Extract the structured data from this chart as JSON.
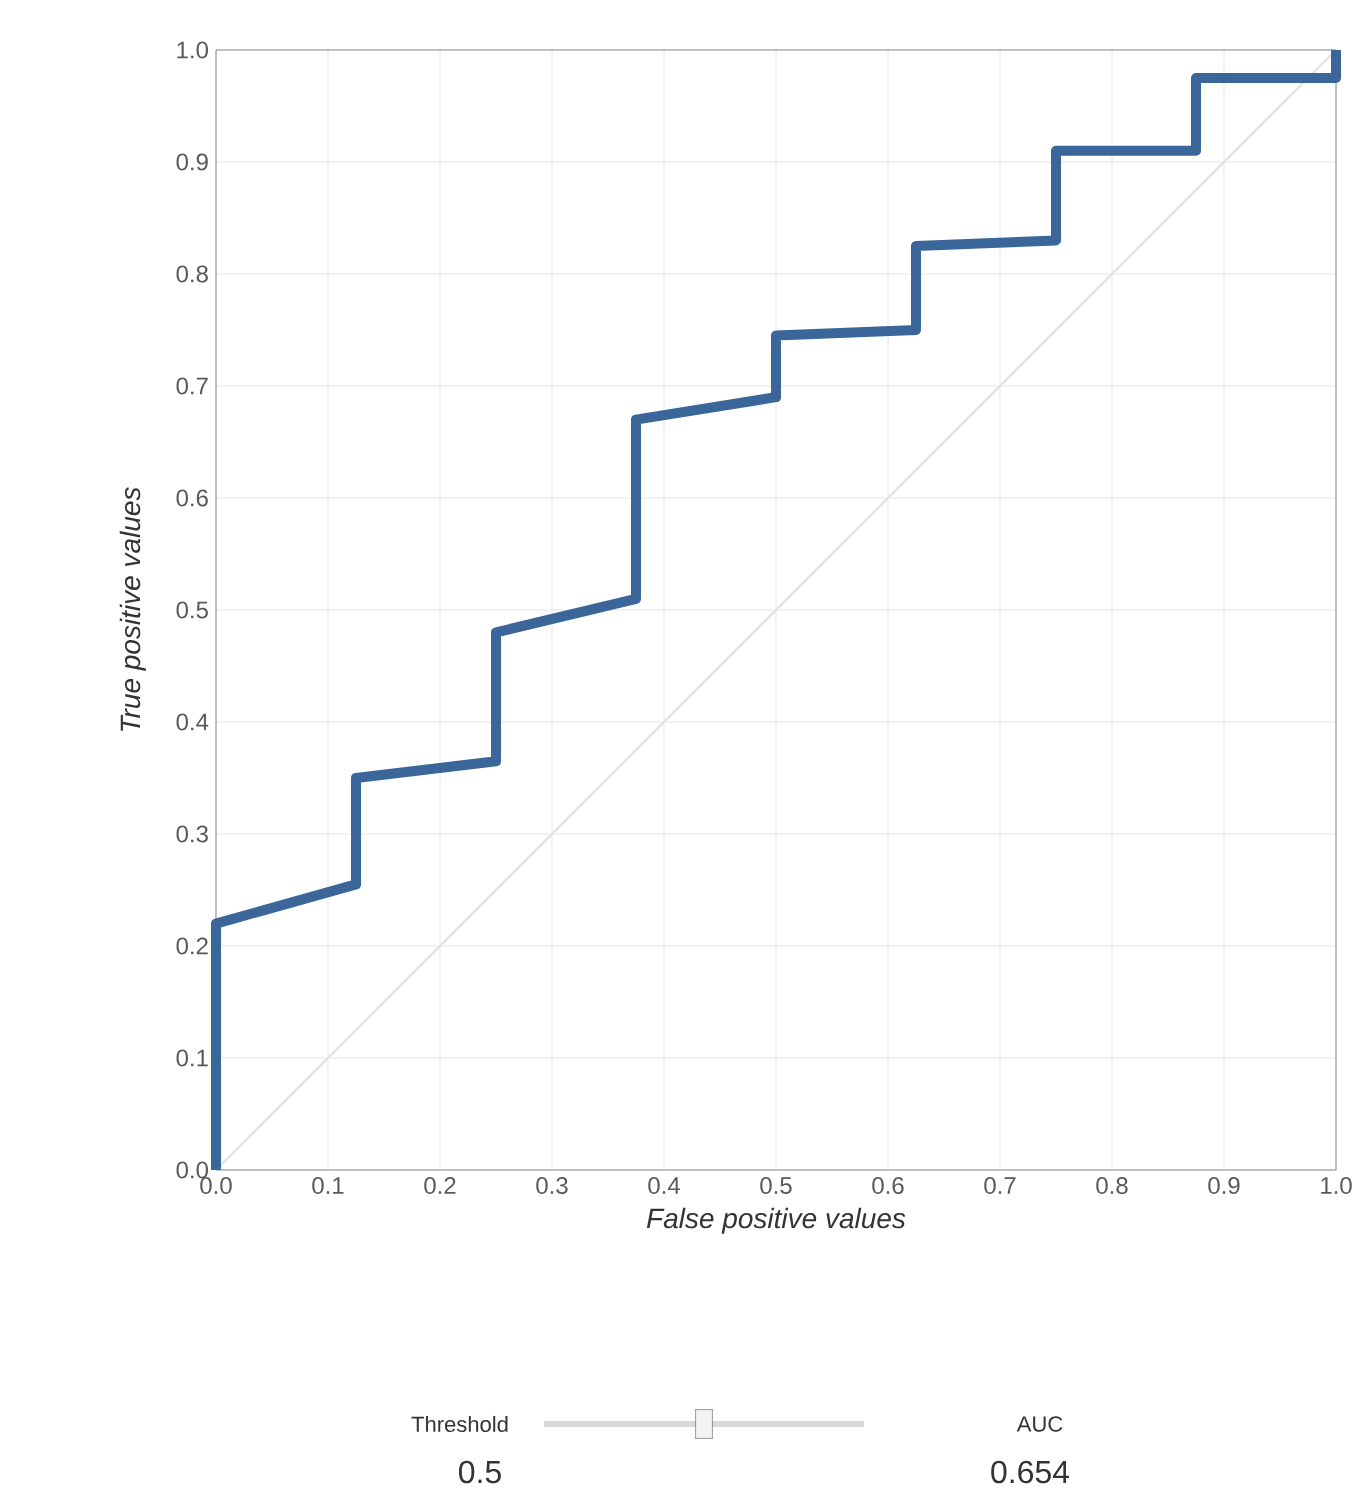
{
  "chart_data": {
    "type": "line",
    "xlabel": "False positive values",
    "ylabel": "True positive values",
    "series": [
      {
        "color": "#e3e3e3",
        "x": [
          0,
          1
        ],
        "values": [
          0,
          1
        ]
      },
      {
        "color": "#3a6699",
        "x": [
          0,
          0,
          0.125,
          0.125,
          0.25,
          0.25,
          0.375,
          0.375,
          0.5,
          0.5,
          0.625,
          0.625,
          0.75,
          0.75,
          0.875,
          0.875,
          1.0,
          1.0
        ],
        "values": [
          0,
          0.22,
          0.255,
          0.35,
          0.365,
          0.48,
          0.51,
          0.67,
          0.69,
          0.745,
          0.75,
          0.825,
          0.83,
          0.91,
          0.91,
          0.975,
          0.975,
          1.0
        ]
      }
    ],
    "xlim": [
      0,
      1
    ],
    "ylim": [
      0,
      1
    ],
    "xticks": [
      {
        "value": 0,
        "label": "0.0"
      },
      0.1,
      0.2,
      0.3,
      0.4,
      0.5,
      0.6,
      0.7,
      0.8,
      0.9,
      {
        "value": 1,
        "label": "1.0"
      }
    ],
    "yticks": [
      {
        "value": 0,
        "label": "0.0"
      },
      0.1,
      0.2,
      0.3,
      0.4,
      0.5,
      0.6,
      0.7,
      0.8,
      0.9,
      {
        "value": 1,
        "label": "1.0"
      }
    ],
    "grid": true,
    "marker": "none",
    "line_style": "solid",
    "annotations": [
      "Threshold",
      "0.5",
      "AUC",
      "0.654"
    ]
  }
}
